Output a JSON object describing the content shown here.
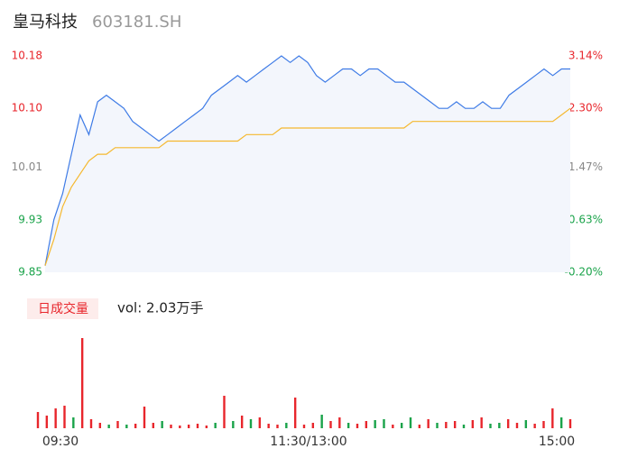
{
  "header": {
    "name": "皇马科技",
    "code": "603181.SH"
  },
  "chart_data": [
    {
      "type": "line",
      "xlim": [
        0,
        240
      ],
      "ylim": [
        9.85,
        10.18
      ],
      "yticks": [
        {
          "value": 9.85,
          "label": "9.85"
        },
        {
          "value": 9.93,
          "label": "9.93"
        },
        {
          "value": 10.01,
          "label": "10.01"
        },
        {
          "value": 10.1,
          "label": "10.10"
        },
        {
          "value": 10.18,
          "label": "10.18"
        }
      ],
      "ytick_colors": [
        "#1aa34a",
        "#1aa34a",
        "#888888",
        "#e8262c",
        "#e8262c"
      ],
      "y2ticks": [
        {
          "value": 9.85,
          "label": "-0.20%"
        },
        {
          "value": 9.93,
          "label": "0.63%"
        },
        {
          "value": 10.01,
          "label": "1.47%"
        },
        {
          "value": 10.1,
          "label": "2.30%"
        },
        {
          "value": 10.18,
          "label": "3.14%"
        }
      ],
      "x": [
        0,
        4,
        8,
        12,
        16,
        20,
        24,
        28,
        32,
        36,
        40,
        44,
        48,
        52,
        56,
        60,
        64,
        68,
        72,
        76,
        80,
        84,
        88,
        92,
        96,
        100,
        104,
        108,
        112,
        116,
        120,
        124,
        128,
        132,
        136,
        140,
        144,
        148,
        152,
        156,
        160,
        164,
        168,
        172,
        176,
        180,
        184,
        188,
        192,
        196,
        200,
        204,
        208,
        212,
        216,
        220,
        224,
        228,
        232,
        236,
        240
      ],
      "series": [
        {
          "color": "#3e7be6",
          "fill": "#f3f6fc",
          "values": [
            9.86,
            9.93,
            9.97,
            10.03,
            10.09,
            10.06,
            10.11,
            10.12,
            10.11,
            10.1,
            10.08,
            10.07,
            10.06,
            10.05,
            10.06,
            10.07,
            10.08,
            10.09,
            10.1,
            10.12,
            10.13,
            10.14,
            10.15,
            10.14,
            10.15,
            10.16,
            10.17,
            10.18,
            10.17,
            10.18,
            10.17,
            10.15,
            10.14,
            10.15,
            10.16,
            10.16,
            10.15,
            10.16,
            10.16,
            10.15,
            10.14,
            10.14,
            10.13,
            10.12,
            10.11,
            10.1,
            10.1,
            10.11,
            10.1,
            10.1,
            10.11,
            10.1,
            10.1,
            10.12,
            10.13,
            10.14,
            10.15,
            10.16,
            10.15,
            10.16,
            10.16
          ]
        },
        {
          "color": "#f5b82e",
          "values": [
            9.86,
            9.9,
            9.95,
            9.98,
            10.0,
            10.02,
            10.03,
            10.03,
            10.04,
            10.04,
            10.04,
            10.04,
            10.04,
            10.04,
            10.05,
            10.05,
            10.05,
            10.05,
            10.05,
            10.05,
            10.05,
            10.05,
            10.05,
            10.06,
            10.06,
            10.06,
            10.06,
            10.07,
            10.07,
            10.07,
            10.07,
            10.07,
            10.07,
            10.07,
            10.07,
            10.07,
            10.07,
            10.07,
            10.07,
            10.07,
            10.07,
            10.07,
            10.08,
            10.08,
            10.08,
            10.08,
            10.08,
            10.08,
            10.08,
            10.08,
            10.08,
            10.08,
            10.08,
            10.08,
            10.08,
            10.08,
            10.08,
            10.08,
            10.08,
            10.09,
            10.1
          ]
        }
      ]
    },
    {
      "type": "bar",
      "legend": "日成交量",
      "label": "vol: 2.03万手",
      "xticks": [
        {
          "value": 0,
          "label": "09:30"
        },
        {
          "value": 120,
          "label": "11:30/13:00"
        },
        {
          "value": 240,
          "label": "15:00"
        }
      ],
      "ylim": [
        0,
        100
      ],
      "x": [
        0,
        4,
        8,
        12,
        16,
        20,
        24,
        28,
        32,
        36,
        40,
        44,
        48,
        52,
        56,
        60,
        64,
        68,
        72,
        76,
        80,
        84,
        88,
        92,
        96,
        100,
        104,
        108,
        112,
        116,
        120,
        124,
        128,
        132,
        136,
        140,
        144,
        148,
        152,
        156,
        160,
        164,
        168,
        172,
        176,
        180,
        184,
        188,
        192,
        196,
        200,
        204,
        208,
        212,
        216,
        220,
        224,
        228,
        232,
        236,
        240
      ],
      "values": [
        18,
        14,
        22,
        25,
        12,
        100,
        10,
        6,
        4,
        8,
        4,
        5,
        24,
        6,
        8,
        4,
        3,
        4,
        5,
        3,
        6,
        36,
        8,
        14,
        10,
        12,
        5,
        4,
        6,
        34,
        4,
        6,
        15,
        8,
        12,
        6,
        5,
        8,
        9,
        10,
        4,
        6,
        12,
        4,
        10,
        6,
        7,
        8,
        4,
        9,
        12,
        5,
        6,
        10,
        6,
        9,
        5,
        8,
        22,
        12,
        10
      ],
      "colors": [
        "#e8262c",
        "#e8262c",
        "#e8262c",
        "#e8262c",
        "#1aa34a",
        "#e8262c",
        "#e8262c",
        "#e8262c",
        "#1aa34a",
        "#e8262c",
        "#1aa34a",
        "#e8262c",
        "#e8262c",
        "#e8262c",
        "#1aa34a",
        "#e8262c",
        "#e8262c",
        "#e8262c",
        "#e8262c",
        "#e8262c",
        "#1aa34a",
        "#e8262c",
        "#1aa34a",
        "#e8262c",
        "#1aa34a",
        "#e8262c",
        "#e8262c",
        "#e8262c",
        "#1aa34a",
        "#e8262c",
        "#e8262c",
        "#e8262c",
        "#1aa34a",
        "#e8262c",
        "#e8262c",
        "#1aa34a",
        "#e8262c",
        "#e8262c",
        "#1aa34a",
        "#1aa34a",
        "#e8262c",
        "#1aa34a",
        "#1aa34a",
        "#e8262c",
        "#e8262c",
        "#1aa34a",
        "#e8262c",
        "#e8262c",
        "#1aa34a",
        "#e8262c",
        "#e8262c",
        "#1aa34a",
        "#1aa34a",
        "#e8262c",
        "#e8262c",
        "#1aa34a",
        "#e8262c",
        "#e8262c",
        "#e8262c",
        "#1aa34a",
        "#e8262c"
      ]
    }
  ]
}
